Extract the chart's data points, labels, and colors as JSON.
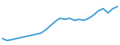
{
  "values": [
    3,
    2,
    2.5,
    3,
    3.5,
    4,
    4.5,
    5,
    5.5,
    7,
    9,
    11,
    12.5,
    12,
    12.5,
    11.5,
    12,
    11.5,
    12.5,
    14,
    16,
    17,
    15,
    17,
    18
  ],
  "line_color": "#4da6d9",
  "line_width": 1.2,
  "background_color": "#ffffff",
  "ylim": [
    1,
    20
  ],
  "fill": false
}
